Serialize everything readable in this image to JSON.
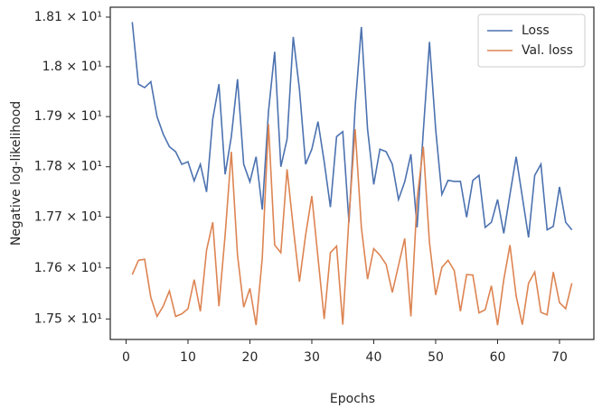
{
  "chart_data": {
    "type": "line",
    "xlabel": "Epochs",
    "ylabel": "Negative log-likelihood",
    "x": [
      1,
      2,
      3,
      4,
      5,
      6,
      7,
      8,
      9,
      10,
      11,
      12,
      13,
      14,
      15,
      16,
      17,
      18,
      19,
      20,
      21,
      22,
      23,
      24,
      25,
      26,
      27,
      28,
      29,
      30,
      31,
      32,
      33,
      34,
      35,
      36,
      37,
      38,
      39,
      40,
      41,
      42,
      43,
      44,
      45,
      46,
      47,
      48,
      49,
      50,
      51,
      52,
      53,
      54,
      55,
      56,
      57,
      58,
      59,
      60,
      61,
      62,
      63,
      64,
      65,
      66,
      67,
      68,
      69,
      70,
      71,
      72
    ],
    "series": [
      {
        "name": "Loss",
        "color": "#4c72b0",
        "values": [
          18.09,
          17.965,
          17.958,
          17.97,
          17.9,
          17.865,
          17.84,
          17.83,
          17.805,
          17.81,
          17.772,
          17.805,
          17.75,
          17.895,
          17.965,
          17.785,
          17.86,
          17.975,
          17.805,
          17.77,
          17.82,
          17.715,
          17.91,
          18.03,
          17.8,
          17.855,
          18.06,
          17.955,
          17.805,
          17.835,
          17.89,
          17.81,
          17.72,
          17.86,
          17.87,
          17.69,
          17.92,
          18.08,
          17.875,
          17.765,
          17.835,
          17.83,
          17.805,
          17.735,
          17.77,
          17.825,
          17.68,
          17.87,
          18.05,
          17.875,
          17.745,
          17.773,
          17.771,
          17.771,
          17.7,
          17.773,
          17.783,
          17.68,
          17.69,
          17.735,
          17.668,
          17.745,
          17.82,
          17.74,
          17.66,
          17.783,
          17.805,
          17.675,
          17.682,
          17.76,
          17.69,
          17.675
        ]
      },
      {
        "name": "Val. loss",
        "color": "#dd8452",
        "values": [
          17.587,
          17.615,
          17.617,
          17.542,
          17.505,
          17.525,
          17.555,
          17.505,
          17.51,
          17.52,
          17.577,
          17.515,
          17.635,
          17.69,
          17.525,
          17.665,
          17.83,
          17.625,
          17.523,
          17.56,
          17.488,
          17.62,
          17.885,
          17.645,
          17.63,
          17.795,
          17.68,
          17.573,
          17.665,
          17.742,
          17.62,
          17.5,
          17.63,
          17.643,
          17.489,
          17.7,
          17.875,
          17.68,
          17.578,
          17.638,
          17.625,
          17.607,
          17.552,
          17.605,
          17.658,
          17.505,
          17.735,
          17.84,
          17.65,
          17.547,
          17.601,
          17.615,
          17.595,
          17.515,
          17.587,
          17.586,
          17.512,
          17.518,
          17.565,
          17.488,
          17.577,
          17.645,
          17.545,
          17.489,
          17.57,
          17.592,
          17.513,
          17.508,
          17.592,
          17.532,
          17.52,
          17.57
        ]
      }
    ],
    "xlim": [
      -2.55,
      75.55
    ],
    "xticks": [
      0,
      10,
      20,
      30,
      40,
      50,
      60,
      70
    ],
    "ylim": [
      17.46,
      18.12
    ],
    "yscale": "log",
    "yticks": [
      {
        "value": 17.5,
        "label": "1.75 × 10¹"
      },
      {
        "value": 17.6,
        "label": "1.76 × 10¹"
      },
      {
        "value": 17.7,
        "label": "1.77 × 10¹"
      },
      {
        "value": 17.8,
        "label": "1.78 × 10¹"
      },
      {
        "value": 17.9,
        "label": "1.79 × 10¹"
      },
      {
        "value": 18.0,
        "label": "1.8 × 10¹"
      },
      {
        "value": 18.1,
        "label": "1.81 × 10¹"
      }
    ],
    "grid": false,
    "legend": "upper right"
  }
}
